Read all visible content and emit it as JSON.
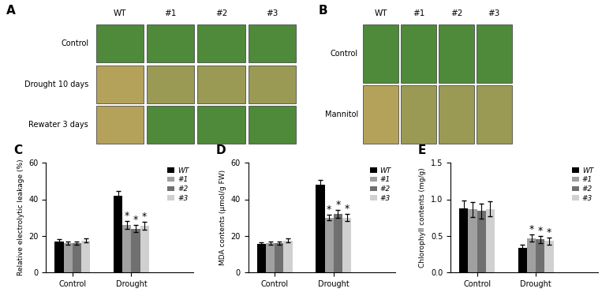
{
  "photo_panels": [
    {
      "panel_label": "A",
      "columns": [
        "WT",
        "#1",
        "#2",
        "#3"
      ],
      "rows": [
        "Control",
        "Drought 10 days",
        "Rewater 3 days"
      ]
    },
    {
      "panel_label": "B",
      "columns": [
        "WT",
        "#1",
        "#2",
        "#3"
      ],
      "rows": [
        "Control",
        "Mannitol"
      ]
    }
  ],
  "chart_data": [
    {
      "type": "bar",
      "panel_label": "C",
      "y_label": "Relative electrolytic leakage (%)",
      "categories": [
        "Control",
        "Drought"
      ],
      "series": [
        {
          "name": "WT",
          "color": "#000000",
          "values": [
            17,
            42
          ],
          "errors": [
            1,
            2.5
          ],
          "significance": [
            null,
            null
          ]
        },
        {
          "name": "#1",
          "color": "#a0a0a0",
          "values": [
            16,
            26
          ],
          "errors": [
            1,
            2
          ],
          "significance": [
            null,
            "*"
          ]
        },
        {
          "name": "#2",
          "color": "#707070",
          "values": [
            16,
            24
          ],
          "errors": [
            1,
            2
          ],
          "significance": [
            null,
            "*"
          ]
        },
        {
          "name": "#3",
          "color": "#d0d0d0",
          "values": [
            17.5,
            25.5
          ],
          "errors": [
            1,
            2
          ],
          "significance": [
            null,
            "*"
          ]
        }
      ],
      "ylim": [
        0,
        60
      ],
      "yticks": [
        0,
        20,
        40,
        60
      ],
      "legend": "upper right"
    },
    {
      "type": "bar",
      "panel_label": "D",
      "y_label": "MDA contents (μmol/g FW)",
      "categories": [
        "Control",
        "Drought"
      ],
      "series": [
        {
          "name": "WT",
          "color": "#000000",
          "values": [
            15.5,
            48
          ],
          "errors": [
            1,
            2.5
          ],
          "significance": [
            null,
            null
          ]
        },
        {
          "name": "#1",
          "color": "#a0a0a0",
          "values": [
            16,
            30
          ],
          "errors": [
            1,
            1.5
          ],
          "significance": [
            null,
            "*"
          ]
        },
        {
          "name": "#2",
          "color": "#707070",
          "values": [
            16,
            32
          ],
          "errors": [
            1,
            2
          ],
          "significance": [
            null,
            "*"
          ]
        },
        {
          "name": "#3",
          "color": "#d0d0d0",
          "values": [
            17.5,
            30
          ],
          "errors": [
            1,
            2
          ],
          "significance": [
            null,
            "*"
          ]
        }
      ],
      "ylim": [
        0,
        60
      ],
      "yticks": [
        0,
        20,
        40,
        60
      ],
      "legend": "upper right"
    },
    {
      "type": "bar",
      "panel_label": "E",
      "y_label": "Chlorophyll contents (mg/g)",
      "categories": [
        "Control",
        "Drought"
      ],
      "series": [
        {
          "name": "WT",
          "color": "#000000",
          "values": [
            0.88,
            0.34
          ],
          "errors": [
            0.1,
            0.04
          ],
          "significance": [
            null,
            null
          ]
        },
        {
          "name": "#1",
          "color": "#a0a0a0",
          "values": [
            0.86,
            0.47
          ],
          "errors": [
            0.1,
            0.05
          ],
          "significance": [
            null,
            "*"
          ]
        },
        {
          "name": "#2",
          "color": "#707070",
          "values": [
            0.84,
            0.45
          ],
          "errors": [
            0.1,
            0.05
          ],
          "significance": [
            null,
            "*"
          ]
        },
        {
          "name": "#3",
          "color": "#d0d0d0",
          "values": [
            0.87,
            0.43
          ],
          "errors": [
            0.1,
            0.05
          ],
          "significance": [
            null,
            "*"
          ]
        }
      ],
      "ylim": [
        0,
        1.5
      ],
      "yticks": [
        {
          "value": 0,
          "label": "0.0"
        },
        0.5,
        {
          "value": 1,
          "label": "1.0"
        },
        1.5
      ],
      "legend": "upper right"
    }
  ]
}
